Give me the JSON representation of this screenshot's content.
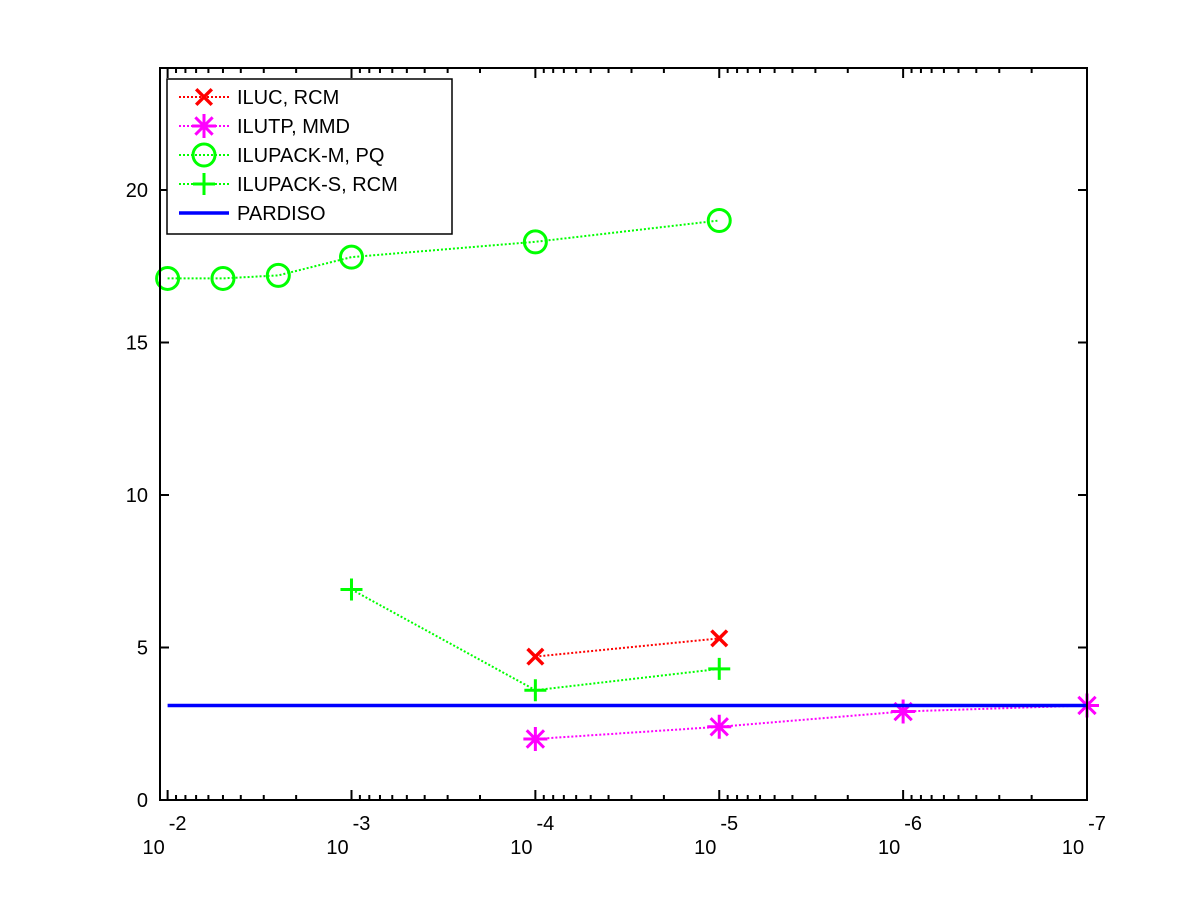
{
  "chart_data": {
    "type": "line",
    "title": "",
    "xlabel": "",
    "ylabel": "",
    "x_scale": "log",
    "x_direction": "decreasing",
    "xlim": [
      0.011,
      1e-07
    ],
    "ylim": [
      0,
      24
    ],
    "grid": false,
    "legend_position": "top-left",
    "x_ticks": [
      {
        "value": 0.01,
        "base": "10",
        "exp": "-2"
      },
      {
        "value": 0.001,
        "base": "10",
        "exp": "-3"
      },
      {
        "value": 0.0001,
        "base": "10",
        "exp": "-4"
      },
      {
        "value": 1e-05,
        "base": "10",
        "exp": "-5"
      },
      {
        "value": 1e-06,
        "base": "10",
        "exp": "-6"
      },
      {
        "value": 1e-07,
        "base": "10",
        "exp": "-7"
      }
    ],
    "y_ticks": [
      {
        "value": 0,
        "label": "0"
      },
      {
        "value": 5,
        "label": "5"
      },
      {
        "value": 10,
        "label": "10"
      },
      {
        "value": 15,
        "label": "15"
      },
      {
        "value": 20,
        "label": "20"
      }
    ],
    "series": [
      {
        "name": "ILUC, RCM",
        "color": "#ff0000",
        "marker": "x",
        "line_style": "dotted",
        "x": [
          0.0001,
          1e-05
        ],
        "y": [
          4.7,
          5.3
        ]
      },
      {
        "name": "ILUTP, MMD",
        "color": "#ff00ff",
        "marker": "asterisk",
        "line_style": "dotted",
        "x": [
          0.0001,
          1e-05,
          1e-06,
          1e-07
        ],
        "y": [
          2.0,
          2.4,
          2.9,
          3.1
        ]
      },
      {
        "name": "ILUPACK-M, PQ",
        "color": "#00ff00",
        "marker": "circle",
        "line_style": "dotted",
        "x": [
          0.01,
          0.005,
          0.0025,
          0.001,
          0.0001,
          1e-05
        ],
        "y": [
          17.1,
          17.1,
          17.2,
          17.8,
          18.3,
          19.0
        ]
      },
      {
        "name": "ILUPACK-S, RCM",
        "color": "#00ff00",
        "marker": "plus",
        "line_style": "dotted",
        "x": [
          0.001,
          0.0001,
          1e-05
        ],
        "y": [
          6.9,
          3.6,
          4.3
        ]
      },
      {
        "name": "PARDISO",
        "color": "#0000ff",
        "marker": "none",
        "line_style": "solid",
        "x": [
          0.01,
          1e-07
        ],
        "y": [
          3.1,
          3.1
        ]
      }
    ]
  }
}
